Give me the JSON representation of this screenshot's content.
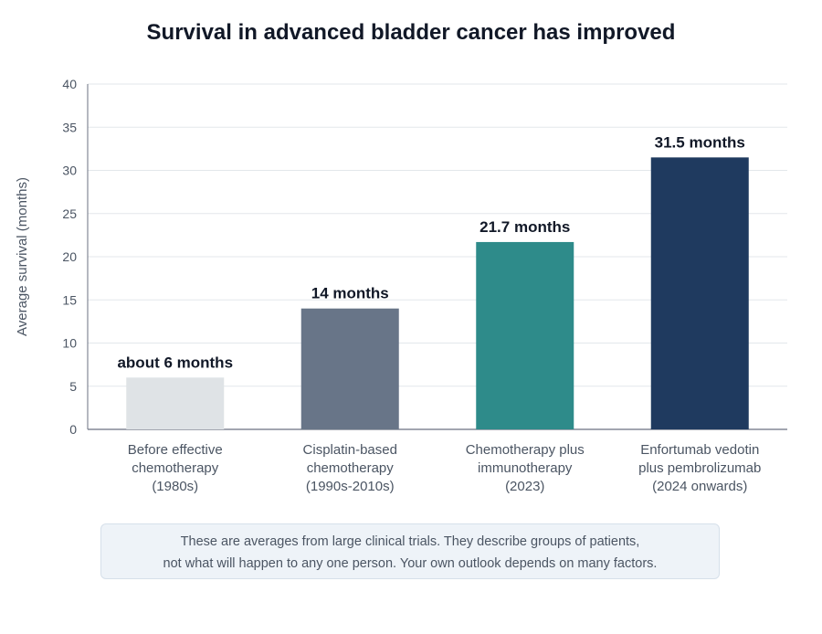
{
  "chart_data": {
    "type": "bar",
    "title": "Survival in advanced bladder cancer has improved",
    "ylabel": "Average survival (months)",
    "xlabel": "",
    "ylim": [
      0,
      40
    ],
    "yticks": [
      0,
      5,
      10,
      15,
      20,
      25,
      30,
      35,
      40
    ],
    "grid": true,
    "categories": [
      [
        "Before effective",
        "chemotherapy",
        "(1980s)"
      ],
      [
        "Cisplatin-based",
        "chemotherapy",
        "(1990s-2010s)"
      ],
      [
        "Chemotherapy plus",
        "immunotherapy",
        "(2023)"
      ],
      [
        "Enfortumab vedotin",
        "plus pembrolizumab",
        "(2024 onwards)"
      ]
    ],
    "values": [
      6,
      14,
      21.7,
      31.5
    ],
    "data_labels": [
      "about 6 months",
      "14 months",
      "21.7 months",
      "31.5 months"
    ],
    "colors": [
      "#dfe3e6",
      "#687588",
      "#2e8b8a",
      "#1f3a5f"
    ]
  },
  "note": {
    "line1": "These are averages from large clinical trials. They describe groups of patients,",
    "line2": "not what will happen to any one person. Your own outlook depends on many factors."
  }
}
